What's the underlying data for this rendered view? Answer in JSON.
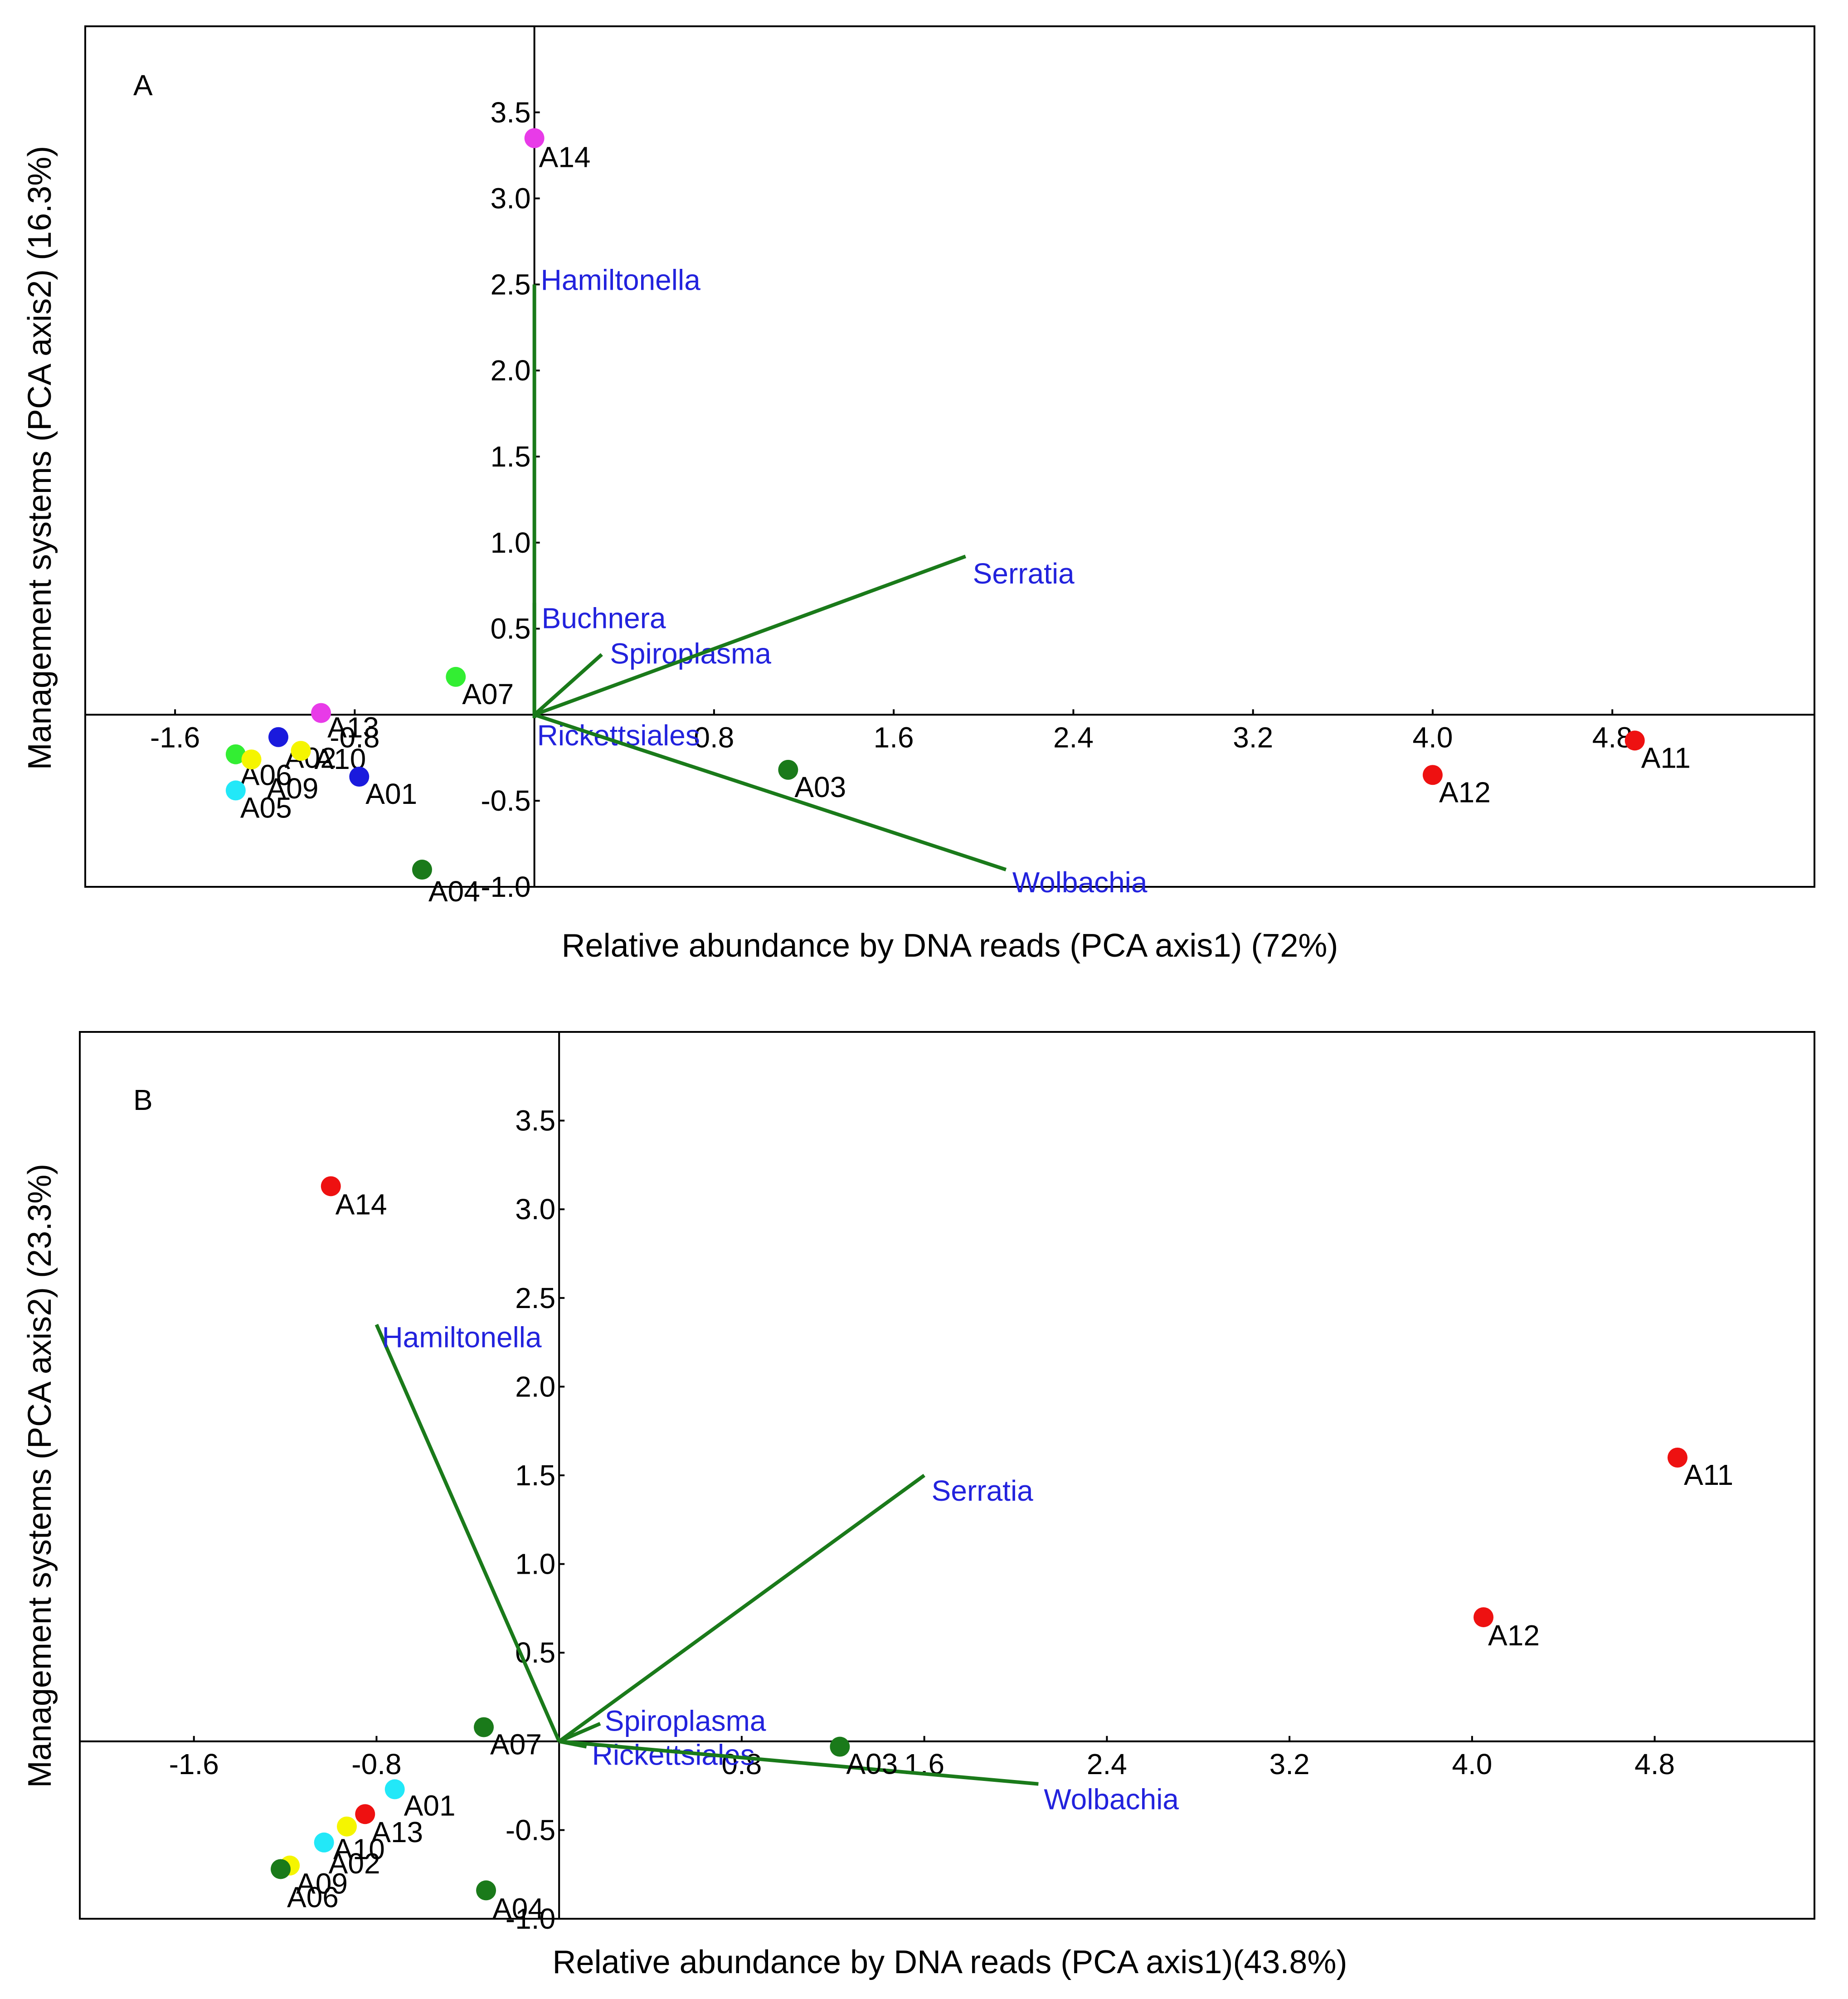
{
  "style": {
    "vector_color": "#1a7a1a",
    "vector_label_color": "#2222dd",
    "point_colors": {
      "magenta": "#e83be8",
      "lime": "#33ee33",
      "green": "#1a7a1a",
      "blue": "#1a1add",
      "yellow": "#f5f500",
      "cyan": "#22e8f8",
      "red": "#ee1111"
    }
  },
  "chart_data": [
    {
      "type": "scatter",
      "panel_label": "A",
      "xlabel": "Relative abundance by DNA reads (PCA axis1) (72%)",
      "ylabel": "Management systems (PCA axis2) (16.3%)",
      "xlim": [
        -2.0,
        5.7
      ],
      "ylim": [
        -1.0,
        4.0
      ],
      "x_ticks": [
        {
          "value": -1.6,
          "label": "-1.6"
        },
        {
          "value": -0.8,
          "label": "-0.8"
        },
        {
          "value": 0.8,
          "label": "0.8"
        },
        {
          "value": 1.6,
          "label": "1.6"
        },
        {
          "value": 2.4,
          "label": "2.4"
        },
        {
          "value": 3.2,
          "label": "3.2"
        },
        {
          "value": 4.0,
          "label": "4.0"
        },
        {
          "value": 4.8,
          "label": "4.8"
        }
      ],
      "y_ticks": [
        {
          "value": -1.0,
          "label": "-1.0"
        },
        {
          "value": -0.5,
          "label": "-0.5"
        },
        {
          "value": 0.5,
          "label": "0.5"
        },
        {
          "value": 1.0,
          "label": "1.0"
        },
        {
          "value": 1.5,
          "label": "1.5"
        },
        {
          "value": 2.0,
          "label": "2.0"
        },
        {
          "value": 2.5,
          "label": "2.5"
        },
        {
          "value": 3.0,
          "label": "3.0"
        },
        {
          "value": 3.5,
          "label": "3.5"
        }
      ],
      "points": [
        {
          "label": "A14",
          "x": 0.0,
          "y": 3.35,
          "color": "magenta"
        },
        {
          "label": "A07",
          "x": -0.35,
          "y": 0.22,
          "color": "lime"
        },
        {
          "label": "A13",
          "x": -0.95,
          "y": 0.01,
          "color": "magenta"
        },
        {
          "label": "A06",
          "x": -1.33,
          "y": -0.23,
          "color": "lime"
        },
        {
          "label": "A09",
          "x": -1.26,
          "y": -0.26,
          "color": "yellow"
        },
        {
          "label": "A02",
          "x": -1.14,
          "y": -0.13,
          "color": "blue"
        },
        {
          "label": "A10",
          "x": -1.04,
          "y": -0.21,
          "color": "yellow"
        },
        {
          "label": "A01",
          "x": -0.78,
          "y": -0.36,
          "color": "blue"
        },
        {
          "label": "A05",
          "x": -1.33,
          "y": -0.44,
          "color": "cyan"
        },
        {
          "label": "A04",
          "x": -0.5,
          "y": -0.9,
          "color": "green"
        },
        {
          "label": "A03",
          "x": 1.13,
          "y": -0.32,
          "color": "green"
        },
        {
          "label": "A12",
          "x": 4.0,
          "y": -0.35,
          "color": "red"
        },
        {
          "label": "A11",
          "x": 4.9,
          "y": -0.15,
          "color": "red"
        }
      ],
      "vectors": [
        {
          "label": "Hamiltonella",
          "x": 0.0,
          "y": 2.5
        },
        {
          "label": "Buchnera",
          "x": 0.0,
          "y": 0.65
        },
        {
          "label": "Spiroplasma",
          "x": 0.3,
          "y": 0.35
        },
        {
          "label": "Serratia",
          "x": 1.92,
          "y": 0.92
        },
        {
          "label": "Rickettsiales",
          "x": 0.0,
          "y": -0.02
        },
        {
          "label": "Wolbachia",
          "x": 2.1,
          "y": -0.9
        }
      ]
    },
    {
      "type": "scatter",
      "panel_label": "B",
      "xlabel": "Relative abundance by DNA reads (PCA axis1)(43.8%)",
      "ylabel": "Management systems (PCA axis2) (23.3%)",
      "xlim": [
        -2.1,
        5.5
      ],
      "ylim": [
        -1.0,
        4.0
      ],
      "x_ticks": [
        {
          "value": -1.6,
          "label": "-1.6"
        },
        {
          "value": -0.8,
          "label": "-0.8"
        },
        {
          "value": 0.8,
          "label": "0.8"
        },
        {
          "value": 1.6,
          "label": "1.6"
        },
        {
          "value": 2.4,
          "label": "2.4"
        },
        {
          "value": 3.2,
          "label": "3.2"
        },
        {
          "value": 4.0,
          "label": "4.0"
        },
        {
          "value": 4.8,
          "label": "4.8"
        }
      ],
      "y_ticks": [
        {
          "value": -1.0,
          "label": "-1.0"
        },
        {
          "value": -0.5,
          "label": "-0.5"
        },
        {
          "value": 0.5,
          "label": "0.5"
        },
        {
          "value": 1.0,
          "label": "1.0"
        },
        {
          "value": 1.5,
          "label": "1.5"
        },
        {
          "value": 2.0,
          "label": "2.0"
        },
        {
          "value": 2.5,
          "label": "2.5"
        },
        {
          "value": 3.0,
          "label": "3.0"
        },
        {
          "value": 3.5,
          "label": "3.5"
        }
      ],
      "points": [
        {
          "label": "A14",
          "x": -1.0,
          "y": 3.13,
          "color": "red"
        },
        {
          "label": "A11",
          "x": 4.9,
          "y": 1.6,
          "color": "red"
        },
        {
          "label": "A12",
          "x": 4.05,
          "y": 0.7,
          "color": "red"
        },
        {
          "label": "A07",
          "x": -0.33,
          "y": 0.08,
          "color": "green"
        },
        {
          "label": "A03",
          "x": 1.23,
          "y": -0.03,
          "color": "green"
        },
        {
          "label": "A01",
          "x": -0.72,
          "y": -0.27,
          "color": "cyan"
        },
        {
          "label": "A13",
          "x": -0.85,
          "y": -0.41,
          "color": "red"
        },
        {
          "label": "A10",
          "x": -0.93,
          "y": -0.48,
          "color": "yellow"
        },
        {
          "label": "A02",
          "x": -1.03,
          "y": -0.57,
          "color": "cyan"
        },
        {
          "label": "A09",
          "x": -1.18,
          "y": -0.7,
          "color": "yellow"
        },
        {
          "label": "A06",
          "x": -1.22,
          "y": -0.72,
          "color": "green"
        },
        {
          "label": "A04",
          "x": -0.32,
          "y": -0.84,
          "color": "green"
        }
      ],
      "vectors": [
        {
          "label": "Hamiltonella",
          "x": -0.8,
          "y": 2.35
        },
        {
          "label": "Serratia",
          "x": 1.6,
          "y": 1.5
        },
        {
          "label": "Spiroplasma",
          "x": 0.18,
          "y": 0.1
        },
        {
          "label": "Rickettsiales",
          "x": 0.12,
          "y": -0.03
        },
        {
          "label": "Wolbachia",
          "x": 2.1,
          "y": -0.24
        }
      ]
    }
  ]
}
